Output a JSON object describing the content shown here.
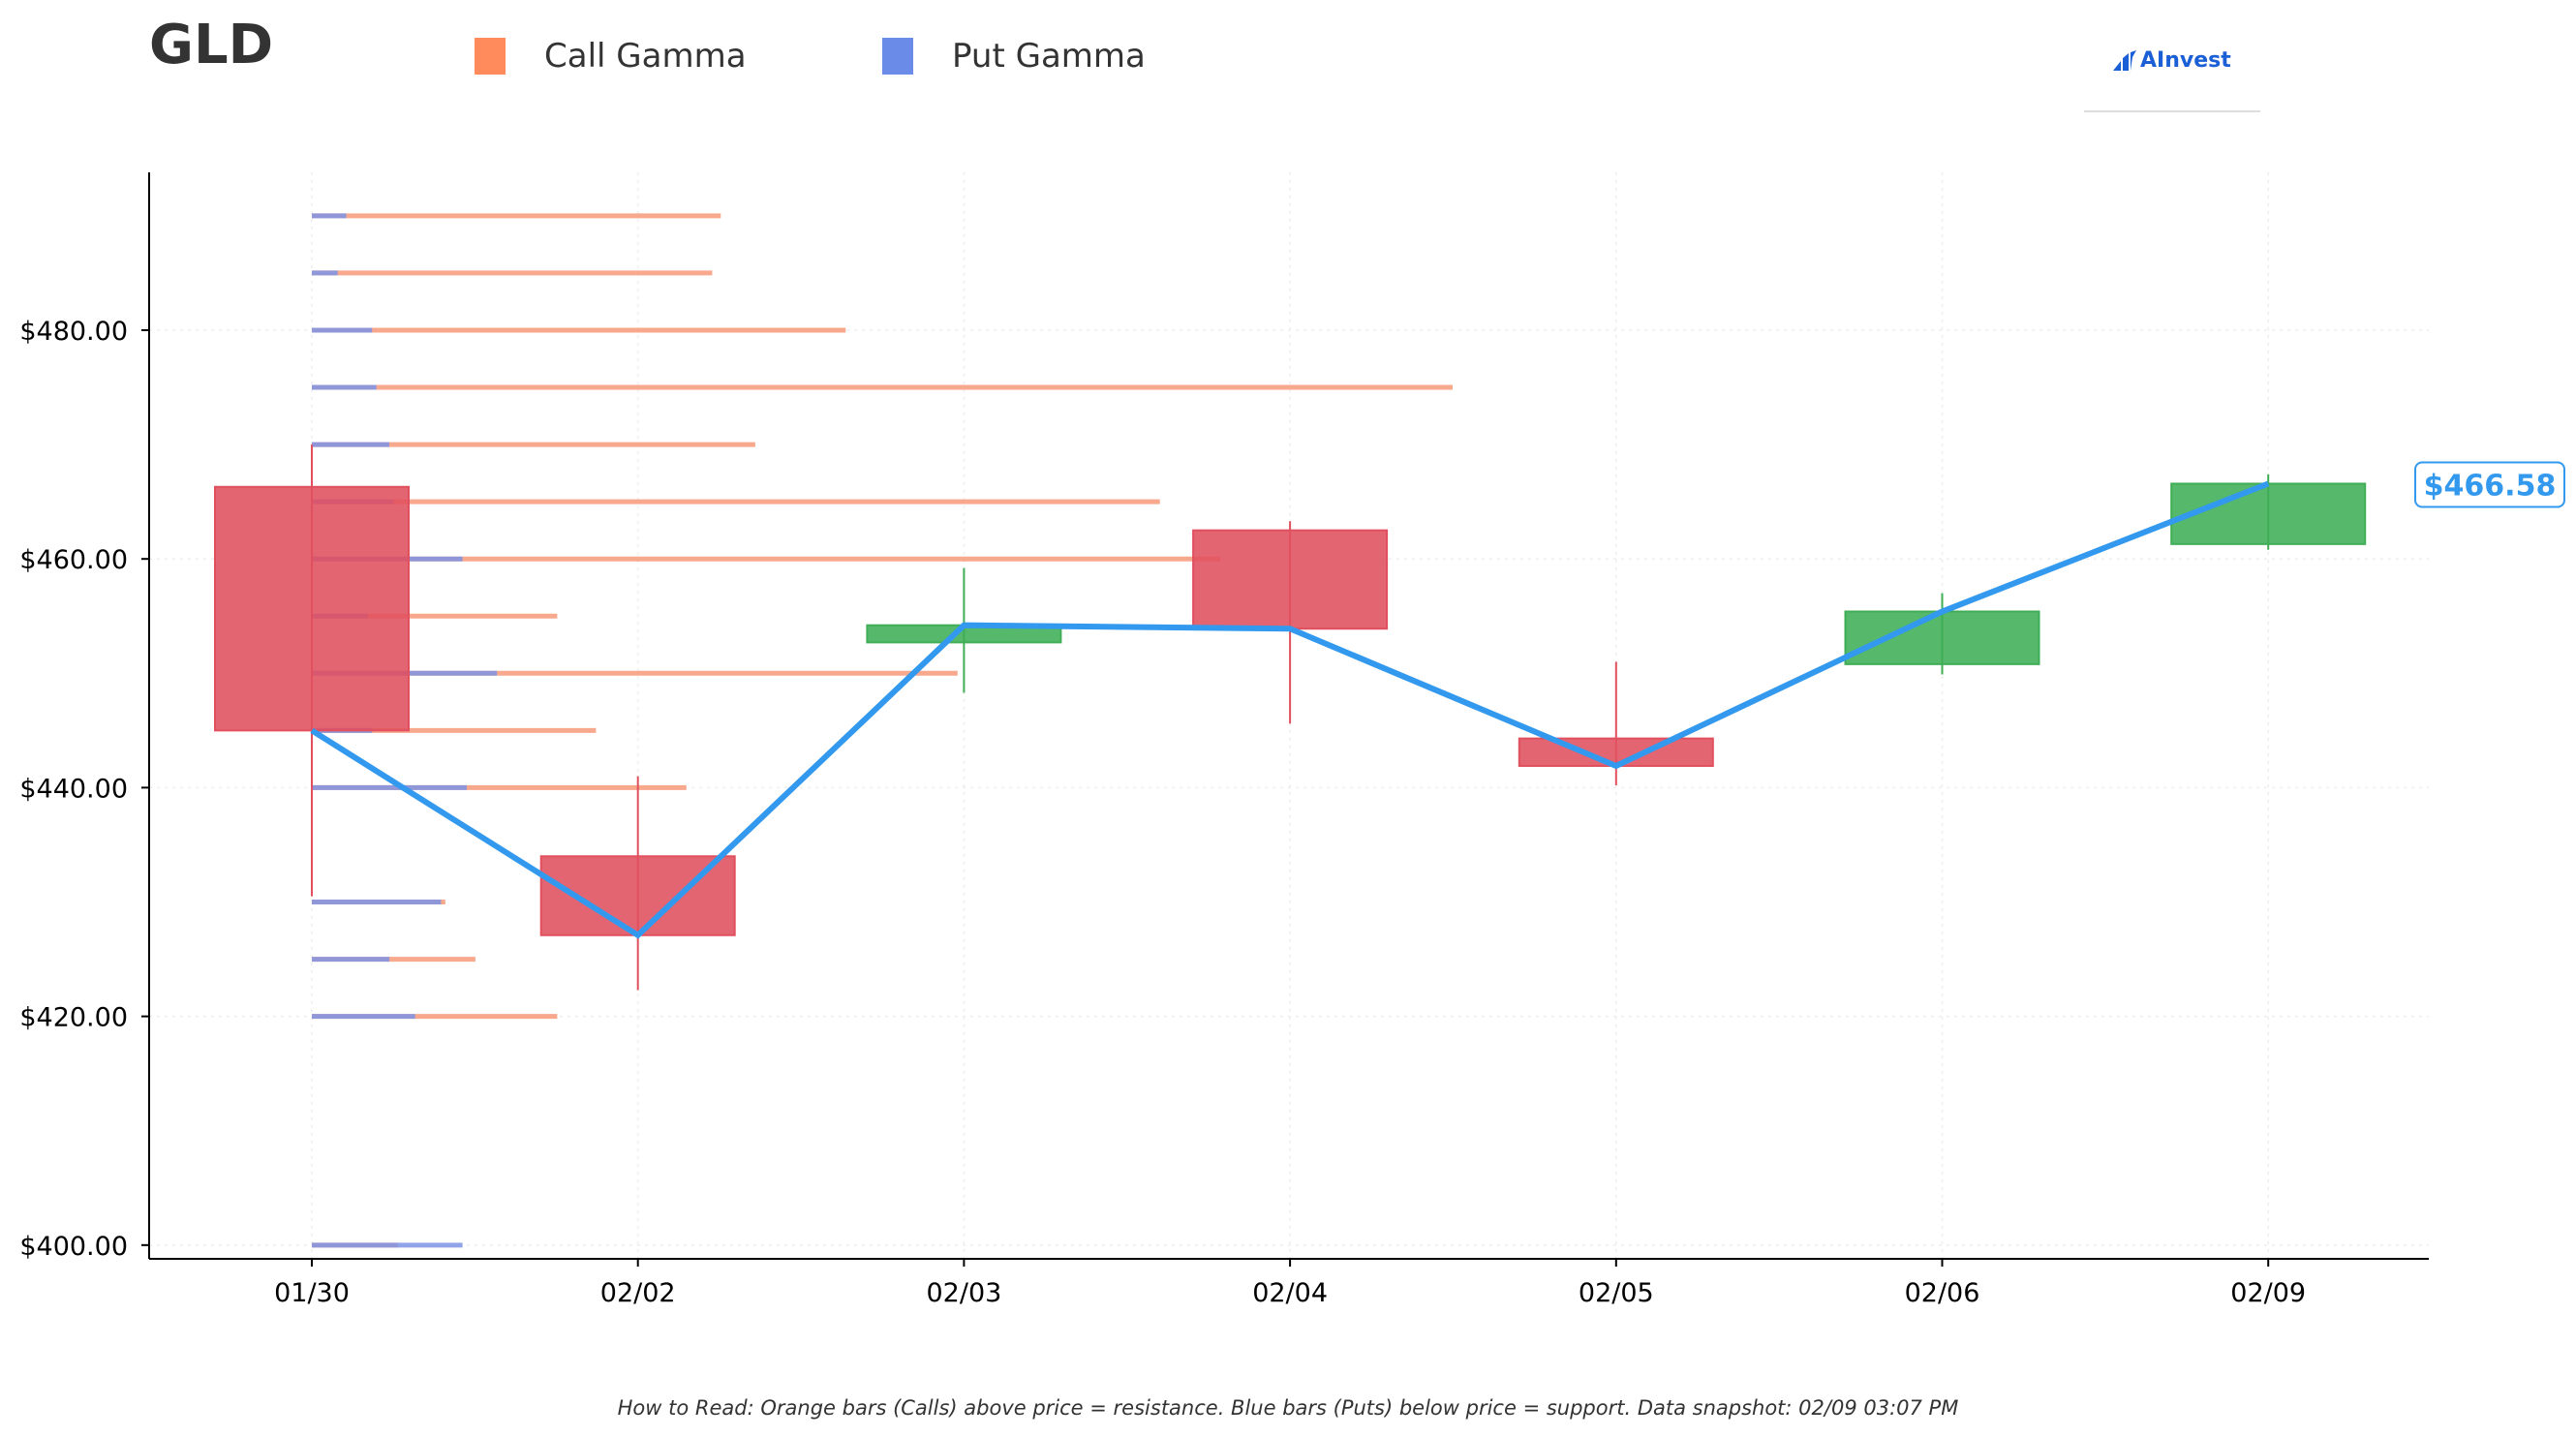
{
  "header": {
    "ticker": "GLD",
    "logo_text": "AInvest"
  },
  "legend": [
    {
      "label": "Call Gamma",
      "color": "#ff8a5c"
    },
    {
      "label": "Put Gamma",
      "color": "#6b8be8"
    }
  ],
  "footnote": "How to Read: Orange bars (Calls) above price = resistance. Blue bars (Puts) below price = support. Data snapshot: 02/09 03:07 PM",
  "colors": {
    "up": "#3fae56",
    "down": "#e0505e",
    "close_line": "#3399ee",
    "call": "#f79a7a",
    "put": "#7f95e6",
    "axis": "#000000",
    "grid": "#eeeeee"
  },
  "chart_data": {
    "type": "candlestick",
    "ylim": [
      398.8,
      493.8
    ],
    "categories": [
      "01/30",
      "02/02",
      "02/03",
      "02/04",
      "02/05",
      "02/06",
      "02/09"
    ],
    "yticks": [
      400,
      420,
      440,
      460,
      480
    ],
    "ytick_labels": [
      "$400.00",
      "$420.00",
      "$440.00",
      "$460.00",
      "$480.00"
    ],
    "candles": [
      {
        "date": "01/30",
        "open": 466.3,
        "high": 470.0,
        "low": 430.5,
        "close": 445.0
      },
      {
        "date": "02/02",
        "open": 434.0,
        "high": 441.0,
        "low": 422.3,
        "close": 427.1
      },
      {
        "date": "02/03",
        "open": 452.7,
        "high": 459.2,
        "low": 448.3,
        "close": 454.2
      },
      {
        "date": "02/04",
        "open": 462.5,
        "high": 463.3,
        "low": 445.6,
        "close": 453.9
      },
      {
        "date": "02/05",
        "open": 444.3,
        "high": 451.0,
        "low": 440.2,
        "close": 441.9
      },
      {
        "date": "02/06",
        "open": 450.8,
        "high": 457.0,
        "low": 449.9,
        "close": 455.4
      },
      {
        "date": "02/09",
        "open": 461.3,
        "high": 467.4,
        "low": 460.8,
        "close": 466.58
      }
    ],
    "last_price_label": "$466.58",
    "gamma": {
      "max_scale": 26.5,
      "strikes": [
        {
          "strike": 490,
          "put": 0.8,
          "call": 9.5
        },
        {
          "strike": 485,
          "put": 0.6,
          "call": 9.3
        },
        {
          "strike": 480,
          "put": 1.4,
          "call": 12.4
        },
        {
          "strike": 475,
          "put": 1.5,
          "call": 26.5
        },
        {
          "strike": 470,
          "put": 1.8,
          "call": 10.3
        },
        {
          "strike": 465,
          "put": 1.9,
          "call": 19.7
        },
        {
          "strike": 460,
          "put": 3.5,
          "call": 21.1
        },
        {
          "strike": 455,
          "put": 1.3,
          "call": 5.7
        },
        {
          "strike": 450,
          "put": 4.3,
          "call": 15.0
        },
        {
          "strike": 445,
          "put": 1.4,
          "call": 6.6
        },
        {
          "strike": 440,
          "put": 3.6,
          "call": 8.7
        },
        {
          "strike": 430,
          "put": 3.0,
          "call": 3.1
        },
        {
          "strike": 425,
          "put": 1.8,
          "call": 3.8
        },
        {
          "strike": 420,
          "put": 2.4,
          "call": 5.7
        },
        {
          "strike": 400,
          "put": 3.5,
          "call": 2.0
        }
      ]
    }
  }
}
